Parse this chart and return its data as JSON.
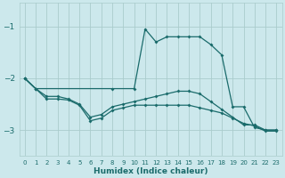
{
  "xlabel": "Humidex (Indice chaleur)",
  "bg_color": "#cce8ec",
  "grid_color": "#aacccc",
  "line_color": "#1a6b6b",
  "xlim": [
    -0.5,
    23.5
  ],
  "ylim": [
    -3.5,
    -0.55
  ],
  "yticks": [
    -3,
    -2,
    -1
  ],
  "xticks": [
    0,
    1,
    2,
    3,
    4,
    5,
    6,
    7,
    8,
    9,
    10,
    11,
    12,
    13,
    14,
    15,
    16,
    17,
    18,
    19,
    20,
    21,
    22,
    23
  ],
  "line1_x": [
    0,
    1,
    2,
    3,
    4,
    5,
    6,
    7,
    8,
    9,
    10,
    11,
    12,
    13,
    14,
    15,
    16,
    17,
    18,
    19,
    20,
    21,
    22,
    23
  ],
  "line1_y": [
    -2.0,
    -2.2,
    -2.35,
    -2.35,
    -2.4,
    -2.5,
    -2.75,
    -2.7,
    -2.55,
    -2.5,
    -2.45,
    -2.4,
    -2.35,
    -2.3,
    -2.25,
    -2.25,
    -2.3,
    -2.45,
    -2.6,
    -2.75,
    -2.9,
    -2.9,
    -3.0,
    -3.0
  ],
  "line2_x": [
    0,
    1,
    8,
    10,
    11,
    12,
    13,
    14,
    15,
    16,
    17,
    18,
    19,
    20,
    21,
    22,
    23
  ],
  "line2_y": [
    -2.0,
    -2.2,
    -2.2,
    -2.2,
    -1.05,
    -1.3,
    -1.2,
    -1.2,
    -1.2,
    -1.2,
    -1.35,
    -1.55,
    -2.55,
    -2.55,
    -2.95,
    -3.0,
    -3.0
  ],
  "line3_x": [
    0,
    1,
    2,
    3,
    4,
    5,
    6,
    7,
    8,
    9,
    10,
    11,
    12,
    13,
    14,
    15,
    16,
    17,
    18,
    19,
    20,
    21,
    22,
    23
  ],
  "line3_y": [
    -2.0,
    -2.2,
    -2.4,
    -2.4,
    -2.42,
    -2.52,
    -2.82,
    -2.77,
    -2.62,
    -2.57,
    -2.52,
    -2.52,
    -2.52,
    -2.52,
    -2.52,
    -2.52,
    -2.57,
    -2.62,
    -2.67,
    -2.77,
    -2.87,
    -2.92,
    -3.02,
    -3.02
  ]
}
